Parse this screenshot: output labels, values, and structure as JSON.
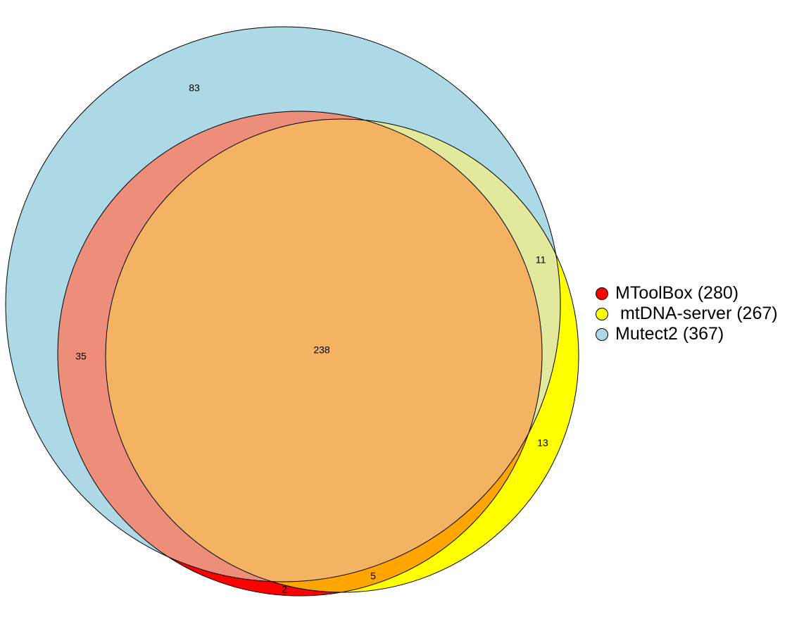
{
  "chart_data": {
    "type": "venn",
    "sets": [
      {
        "name": "MToolBox (280)",
        "color": "#ff0000"
      },
      {
        "name": " mtDNA-server (267)",
        "color": "#ffff00"
      },
      {
        "name": "Mutect2 (367)",
        "color": "#add8e6"
      }
    ],
    "regions": [
      {
        "sets": [
          "Mutect2"
        ],
        "value": "83"
      },
      {
        "sets": [
          "MToolBox",
          "Mutect2"
        ],
        "value": "35"
      },
      {
        "sets": [
          "MToolBox",
          "mtDNA-server",
          "Mutect2"
        ],
        "value": "238"
      },
      {
        "sets": [
          "mtDNA-server",
          "Mutect2"
        ],
        "value": "11"
      },
      {
        "sets": [
          "mtDNA-server"
        ],
        "value": "13"
      },
      {
        "sets": [
          "MToolBox",
          "mtDNA-server"
        ],
        "value": "5"
      },
      {
        "sets": [
          "MToolBox"
        ],
        "value": "2"
      }
    ],
    "legend_position": "right"
  }
}
